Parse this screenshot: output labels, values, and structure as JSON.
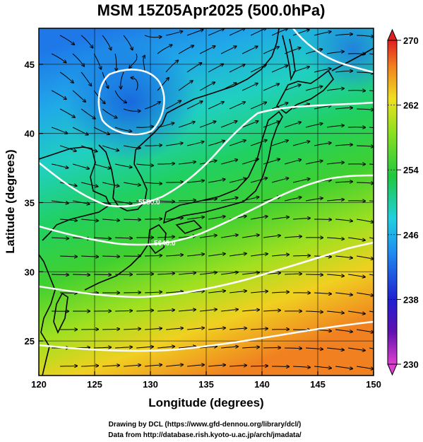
{
  "title": "MSM 15Z05Apr2025 (500.0hPa)",
  "map": {
    "xlabel": "Longitude (degrees)",
    "ylabel": "Latitude  (degrees)",
    "xlim": [
      120,
      150
    ],
    "ylim": [
      22.5,
      47.6
    ],
    "xticks": [
      120,
      125,
      130,
      135,
      140,
      145,
      150
    ],
    "yticks": [
      25,
      30,
      35,
      40,
      45
    ],
    "grid": true
  },
  "colorbar": {
    "min": 230,
    "max": 270,
    "ticks": [
      "270",
      "262",
      "254",
      "246",
      "238",
      "230"
    ],
    "tick_values": [
      270,
      262,
      254,
      246,
      238,
      230
    ]
  },
  "contours": [
    {
      "label": "5580.0"
    },
    {
      "label": "5640.0"
    }
  ],
  "credits": {
    "line1": "Drawing by DCL (https://www.gfd-dennou.org/library/dcl/)",
    "line2": "Data from http://database.rish.kyoto-u.ac.jp/arch/jmadata/"
  }
}
